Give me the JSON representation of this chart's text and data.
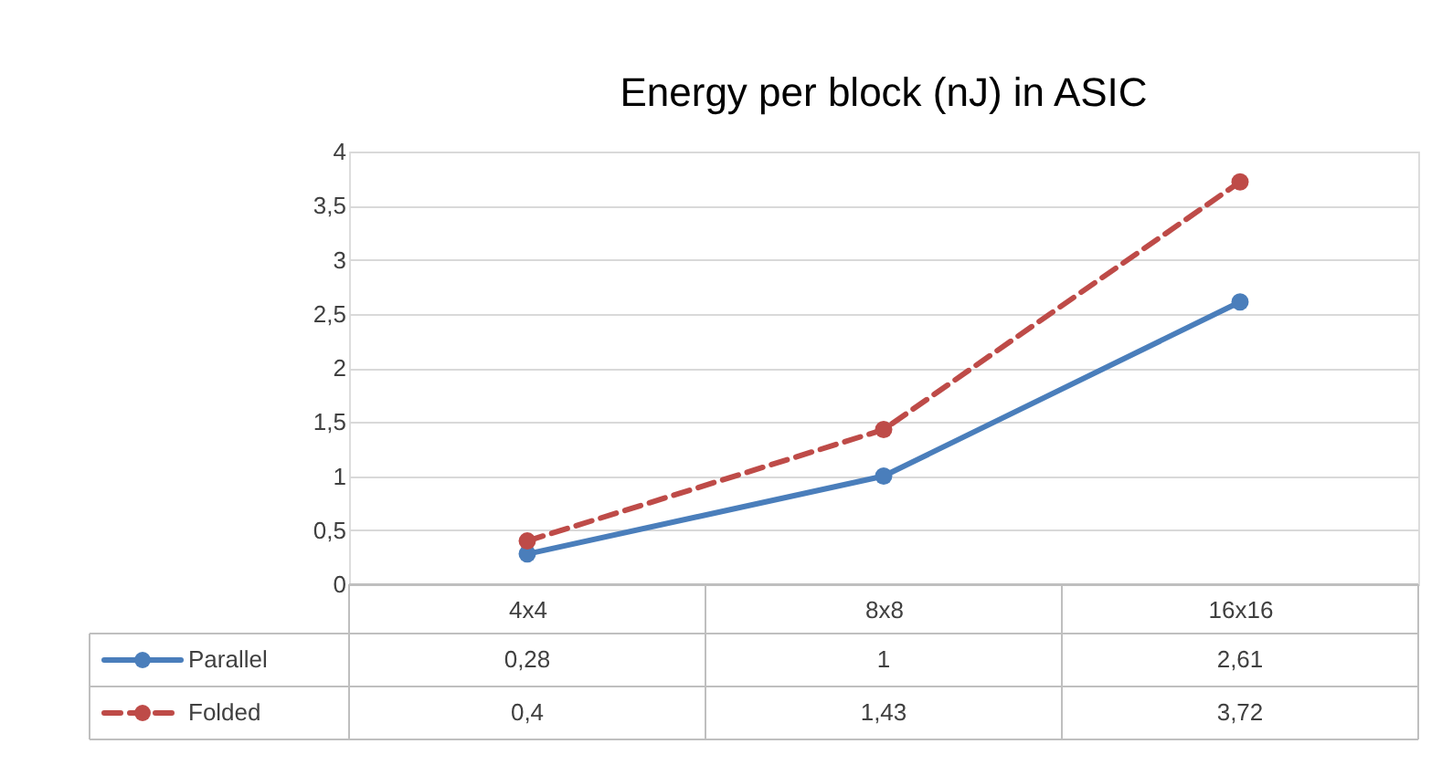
{
  "chart_data": {
    "type": "line",
    "title": "Energy per block (nJ) in ASIC",
    "categories": [
      "4x4",
      "8x8",
      "16x16"
    ],
    "series": [
      {
        "name": "Parallel",
        "color": "#4a7ebb",
        "line_style": "solid",
        "values": [
          0.28,
          1,
          2.61
        ],
        "value_labels": [
          "0,28",
          "1",
          "2,61"
        ]
      },
      {
        "name": "Folded",
        "color": "#be4b48",
        "line_style": "dashed",
        "values": [
          0.4,
          1.43,
          3.72
        ],
        "value_labels": [
          "0,4",
          "1,43",
          "3,72"
        ]
      }
    ],
    "ylim": [
      0,
      4
    ],
    "yticks": [
      0,
      {
        "value": 0.5,
        "label": "0,5"
      },
      1,
      {
        "value": 1.5,
        "label": "1,5"
      },
      2,
      {
        "value": 2.5,
        "label": "2,5"
      },
      3,
      {
        "value": 3.5,
        "label": "3,5"
      },
      4
    ],
    "grid": "y",
    "legend": "bottom",
    "marker": "circle"
  }
}
